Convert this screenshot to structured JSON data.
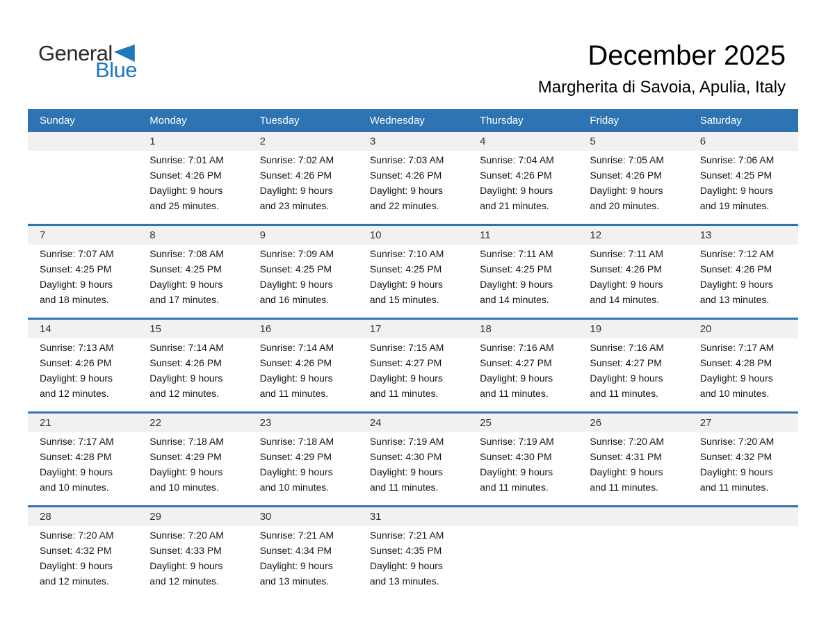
{
  "logo": {
    "line1": "General",
    "line2": "Blue"
  },
  "title": "December 2025",
  "subtitle": "Margherita di Savoia, Apulia, Italy",
  "colors": {
    "header_blue": "#2e74b3",
    "row_separator_blue": "#2e74b3",
    "day_band_gray": "#f1f1f1",
    "logo_dark": "#2b2b2b",
    "logo_blue": "#1d78be"
  },
  "calendar": {
    "day_headers": [
      "Sunday",
      "Monday",
      "Tuesday",
      "Wednesday",
      "Thursday",
      "Friday",
      "Saturday"
    ],
    "weeks": [
      [
        null,
        {
          "day": "1",
          "lines": [
            "Sunrise: 7:01 AM",
            "Sunset: 4:26 PM",
            "Daylight: 9 hours",
            "and 25 minutes."
          ]
        },
        {
          "day": "2",
          "lines": [
            "Sunrise: 7:02 AM",
            "Sunset: 4:26 PM",
            "Daylight: 9 hours",
            "and 23 minutes."
          ]
        },
        {
          "day": "3",
          "lines": [
            "Sunrise: 7:03 AM",
            "Sunset: 4:26 PM",
            "Daylight: 9 hours",
            "and 22 minutes."
          ]
        },
        {
          "day": "4",
          "lines": [
            "Sunrise: 7:04 AM",
            "Sunset: 4:26 PM",
            "Daylight: 9 hours",
            "and 21 minutes."
          ]
        },
        {
          "day": "5",
          "lines": [
            "Sunrise: 7:05 AM",
            "Sunset: 4:26 PM",
            "Daylight: 9 hours",
            "and 20 minutes."
          ]
        },
        {
          "day": "6",
          "lines": [
            "Sunrise: 7:06 AM",
            "Sunset: 4:25 PM",
            "Daylight: 9 hours",
            "and 19 minutes."
          ]
        }
      ],
      [
        {
          "day": "7",
          "lines": [
            "Sunrise: 7:07 AM",
            "Sunset: 4:25 PM",
            "Daylight: 9 hours",
            "and 18 minutes."
          ]
        },
        {
          "day": "8",
          "lines": [
            "Sunrise: 7:08 AM",
            "Sunset: 4:25 PM",
            "Daylight: 9 hours",
            "and 17 minutes."
          ]
        },
        {
          "day": "9",
          "lines": [
            "Sunrise: 7:09 AM",
            "Sunset: 4:25 PM",
            "Daylight: 9 hours",
            "and 16 minutes."
          ]
        },
        {
          "day": "10",
          "lines": [
            "Sunrise: 7:10 AM",
            "Sunset: 4:25 PM",
            "Daylight: 9 hours",
            "and 15 minutes."
          ]
        },
        {
          "day": "11",
          "lines": [
            "Sunrise: 7:11 AM",
            "Sunset: 4:25 PM",
            "Daylight: 9 hours",
            "and 14 minutes."
          ]
        },
        {
          "day": "12",
          "lines": [
            "Sunrise: 7:11 AM",
            "Sunset: 4:26 PM",
            "Daylight: 9 hours",
            "and 14 minutes."
          ]
        },
        {
          "day": "13",
          "lines": [
            "Sunrise: 7:12 AM",
            "Sunset: 4:26 PM",
            "Daylight: 9 hours",
            "and 13 minutes."
          ]
        }
      ],
      [
        {
          "day": "14",
          "lines": [
            "Sunrise: 7:13 AM",
            "Sunset: 4:26 PM",
            "Daylight: 9 hours",
            "and 12 minutes."
          ]
        },
        {
          "day": "15",
          "lines": [
            "Sunrise: 7:14 AM",
            "Sunset: 4:26 PM",
            "Daylight: 9 hours",
            "and 12 minutes."
          ]
        },
        {
          "day": "16",
          "lines": [
            "Sunrise: 7:14 AM",
            "Sunset: 4:26 PM",
            "Daylight: 9 hours",
            "and 11 minutes."
          ]
        },
        {
          "day": "17",
          "lines": [
            "Sunrise: 7:15 AM",
            "Sunset: 4:27 PM",
            "Daylight: 9 hours",
            "and 11 minutes."
          ]
        },
        {
          "day": "18",
          "lines": [
            "Sunrise: 7:16 AM",
            "Sunset: 4:27 PM",
            "Daylight: 9 hours",
            "and 11 minutes."
          ]
        },
        {
          "day": "19",
          "lines": [
            "Sunrise: 7:16 AM",
            "Sunset: 4:27 PM",
            "Daylight: 9 hours",
            "and 11 minutes."
          ]
        },
        {
          "day": "20",
          "lines": [
            "Sunrise: 7:17 AM",
            "Sunset: 4:28 PM",
            "Daylight: 9 hours",
            "and 10 minutes."
          ]
        }
      ],
      [
        {
          "day": "21",
          "lines": [
            "Sunrise: 7:17 AM",
            "Sunset: 4:28 PM",
            "Daylight: 9 hours",
            "and 10 minutes."
          ]
        },
        {
          "day": "22",
          "lines": [
            "Sunrise: 7:18 AM",
            "Sunset: 4:29 PM",
            "Daylight: 9 hours",
            "and 10 minutes."
          ]
        },
        {
          "day": "23",
          "lines": [
            "Sunrise: 7:18 AM",
            "Sunset: 4:29 PM",
            "Daylight: 9 hours",
            "and 10 minutes."
          ]
        },
        {
          "day": "24",
          "lines": [
            "Sunrise: 7:19 AM",
            "Sunset: 4:30 PM",
            "Daylight: 9 hours",
            "and 11 minutes."
          ]
        },
        {
          "day": "25",
          "lines": [
            "Sunrise: 7:19 AM",
            "Sunset: 4:30 PM",
            "Daylight: 9 hours",
            "and 11 minutes."
          ]
        },
        {
          "day": "26",
          "lines": [
            "Sunrise: 7:20 AM",
            "Sunset: 4:31 PM",
            "Daylight: 9 hours",
            "and 11 minutes."
          ]
        },
        {
          "day": "27",
          "lines": [
            "Sunrise: 7:20 AM",
            "Sunset: 4:32 PM",
            "Daylight: 9 hours",
            "and 11 minutes."
          ]
        }
      ],
      [
        {
          "day": "28",
          "lines": [
            "Sunrise: 7:20 AM",
            "Sunset: 4:32 PM",
            "Daylight: 9 hours",
            "and 12 minutes."
          ]
        },
        {
          "day": "29",
          "lines": [
            "Sunrise: 7:20 AM",
            "Sunset: 4:33 PM",
            "Daylight: 9 hours",
            "and 12 minutes."
          ]
        },
        {
          "day": "30",
          "lines": [
            "Sunrise: 7:21 AM",
            "Sunset: 4:34 PM",
            "Daylight: 9 hours",
            "and 13 minutes."
          ]
        },
        {
          "day": "31",
          "lines": [
            "Sunrise: 7:21 AM",
            "Sunset: 4:35 PM",
            "Daylight: 9 hours",
            "and 13 minutes."
          ]
        },
        null,
        null,
        null
      ]
    ]
  }
}
